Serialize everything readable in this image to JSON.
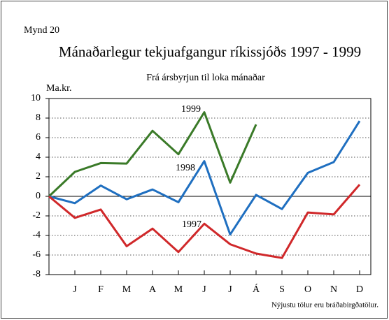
{
  "chart_data": {
    "type": "line",
    "label": "Mynd 20",
    "title": "Mánaðarlegur tekjuafgangur ríkissjóðs 1997 - 1999",
    "subtitle": "Frá ársbyrjun til loka mánaðar",
    "y_label": "Ma.kr.",
    "note": "Nýjustu tölur eru bráðabirgðatölur.",
    "categories": [
      null,
      "J",
      "F",
      "M",
      "A",
      "M",
      "J",
      "J",
      "Á",
      "S",
      "O",
      "N",
      "D"
    ],
    "series": [
      {
        "name": "1999",
        "color": "#3a7a28",
        "values": [
          0,
          2.5,
          3.4,
          3.35,
          6.7,
          4.3,
          8.6,
          1.4,
          7.35,
          null,
          null,
          null,
          null
        ]
      },
      {
        "name": "1998",
        "color": "#1f6fc0",
        "values": [
          0,
          -0.7,
          1.1,
          -0.3,
          0.7,
          -0.6,
          3.6,
          -3.9,
          0.15,
          -1.3,
          2.4,
          3.5,
          7.7
        ]
      },
      {
        "name": "1997",
        "color": "#d0282a",
        "values": [
          0,
          -2.2,
          -1.35,
          -5.1,
          -3.3,
          -5.7,
          -2.8,
          -4.9,
          -5.85,
          -6.3,
          -1.65,
          -1.85,
          1.2
        ]
      }
    ],
    "ylim": [
      -8,
      10
    ],
    "yticks": [
      -8,
      -6,
      -4,
      -2,
      0,
      2,
      4,
      6,
      8,
      10
    ],
    "grid": true
  }
}
